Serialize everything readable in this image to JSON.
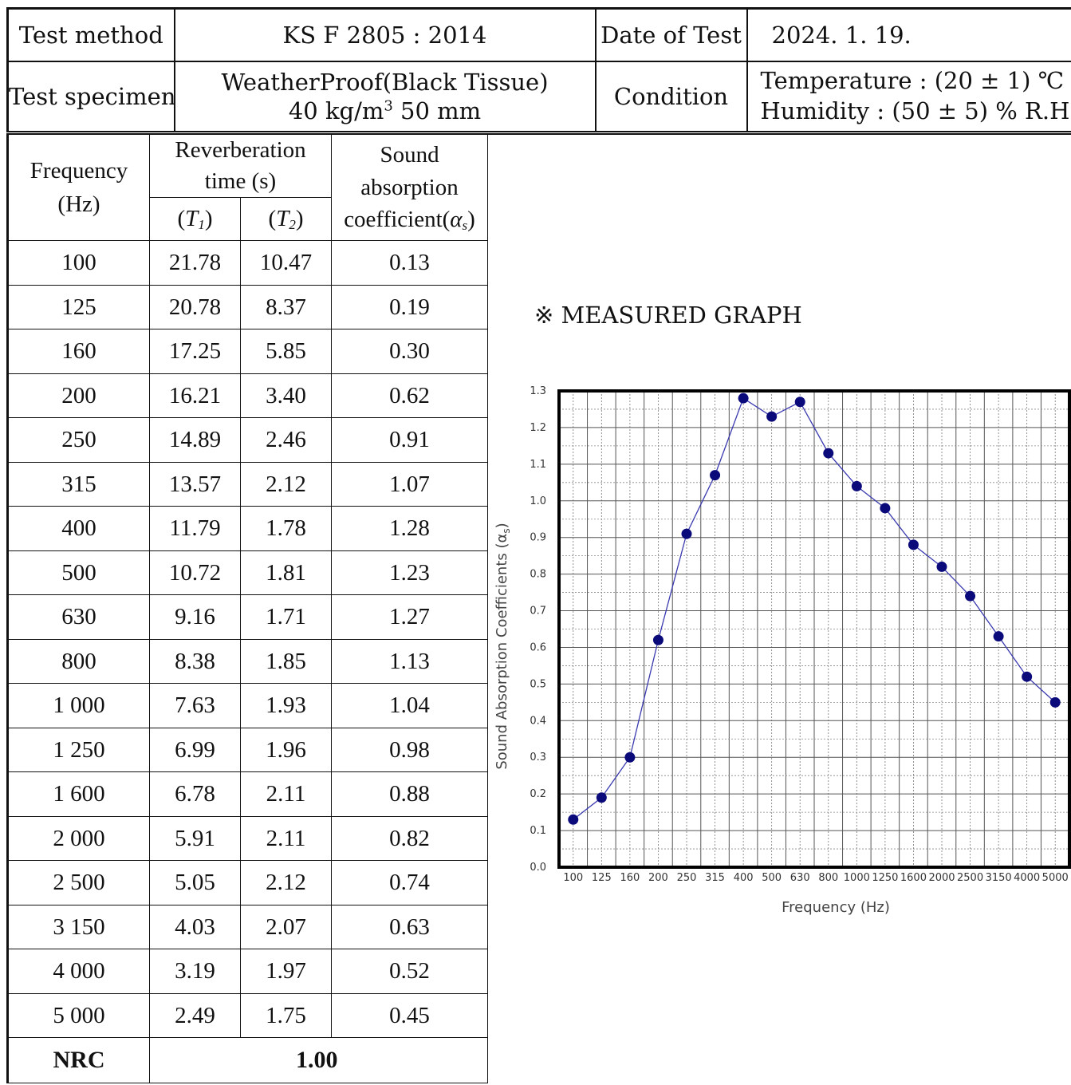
{
  "header": {
    "test_method_label": "Test method",
    "test_method_value": "KS F 2805 : 2014",
    "date_label": "Date of Test",
    "date_value": "2024. 1. 19.",
    "specimen_label": "Test specimen",
    "specimen_line1": "WeatherProof(Black Tissue)",
    "specimen_line2_prefix": "40 kg/m",
    "specimen_line2_sup": "3",
    "specimen_line2_suffix": " 50 mm",
    "condition_label": "Condition",
    "temperature_text": "Temperature : (20 ± 1) ℃",
    "humidity_text": "Humidity : (50 ± 5) % R.H"
  },
  "table": {
    "col_frequency_1": "Frequency",
    "col_frequency_2": "(Hz)",
    "col_reverb_1": "Reverberation",
    "col_reverb_2": "time (s)",
    "col_t1_main": "T",
    "col_t1_sub": "1",
    "col_t2_main": "T",
    "col_t2_sub": "2",
    "col_sound_1": "Sound",
    "col_sound_2": "absorption",
    "col_sound_3": "coefficient(",
    "col_sound_alpha": "α",
    "col_sound_sub": "s",
    "rows": [
      {
        "f": "100",
        "t1": "21.78",
        "t2": "10.47",
        "a": "0.13"
      },
      {
        "f": "125",
        "t1": "20.78",
        "t2": "8.37",
        "a": "0.19"
      },
      {
        "f": "160",
        "t1": "17.25",
        "t2": "5.85",
        "a": "0.30"
      },
      {
        "f": "200",
        "t1": "16.21",
        "t2": "3.40",
        "a": "0.62"
      },
      {
        "f": "250",
        "t1": "14.89",
        "t2": "2.46",
        "a": "0.91"
      },
      {
        "f": "315",
        "t1": "13.57",
        "t2": "2.12",
        "a": "1.07"
      },
      {
        "f": "400",
        "t1": "11.79",
        "t2": "1.78",
        "a": "1.28"
      },
      {
        "f": "500",
        "t1": "10.72",
        "t2": "1.81",
        "a": "1.23"
      },
      {
        "f": "630",
        "t1": "9.16",
        "t2": "1.71",
        "a": "1.27"
      },
      {
        "f": "800",
        "t1": "8.38",
        "t2": "1.85",
        "a": "1.13"
      },
      {
        "f": "1 000",
        "t1": "7.63",
        "t2": "1.93",
        "a": "1.04"
      },
      {
        "f": "1 250",
        "t1": "6.99",
        "t2": "1.96",
        "a": "0.98"
      },
      {
        "f": "1 600",
        "t1": "6.78",
        "t2": "2.11",
        "a": "0.88"
      },
      {
        "f": "2 000",
        "t1": "5.91",
        "t2": "2.11",
        "a": "0.82"
      },
      {
        "f": "2 500",
        "t1": "5.05",
        "t2": "2.12",
        "a": "0.74"
      },
      {
        "f": "3 150",
        "t1": "4.03",
        "t2": "2.07",
        "a": "0.63"
      },
      {
        "f": "4 000",
        "t1": "3.19",
        "t2": "1.97",
        "a": "0.52"
      },
      {
        "f": "5 000",
        "t1": "2.49",
        "t2": "1.75",
        "a": "0.45"
      }
    ],
    "nrc_label": "NRC",
    "nrc_value": "1.00"
  },
  "graph_title": "※ MEASURED GRAPH",
  "chart_data": {
    "type": "line",
    "x": [
      "100",
      "125",
      "160",
      "200",
      "250",
      "315",
      "400",
      "500",
      "630",
      "800",
      "1000",
      "1250",
      "1600",
      "2000",
      "2500",
      "3150",
      "4000",
      "5000"
    ],
    "series": [
      {
        "values": [
          0.13,
          0.19,
          0.3,
          0.62,
          0.91,
          1.07,
          1.28,
          1.23,
          1.27,
          1.13,
          1.04,
          0.98,
          0.88,
          0.82,
          0.74,
          0.63,
          0.52,
          0.45
        ]
      }
    ],
    "xlabel": "Frequency (Hz)",
    "ylabel": "Sound Absorption Coefficients (α",
    "ylabel_sub": "s",
    "ylabel_end": ")",
    "ylim": [
      0.0,
      1.3
    ],
    "yticks": [
      "0.0",
      "0.1",
      "0.2",
      "0.3",
      "0.4",
      "0.5",
      "0.6",
      "0.7",
      "0.8",
      "0.9",
      "1.0",
      "1.1",
      "1.2",
      "1.3"
    ],
    "grid": true,
    "line_color": "#3a3ab0",
    "marker_color": "#0a0a7a"
  }
}
